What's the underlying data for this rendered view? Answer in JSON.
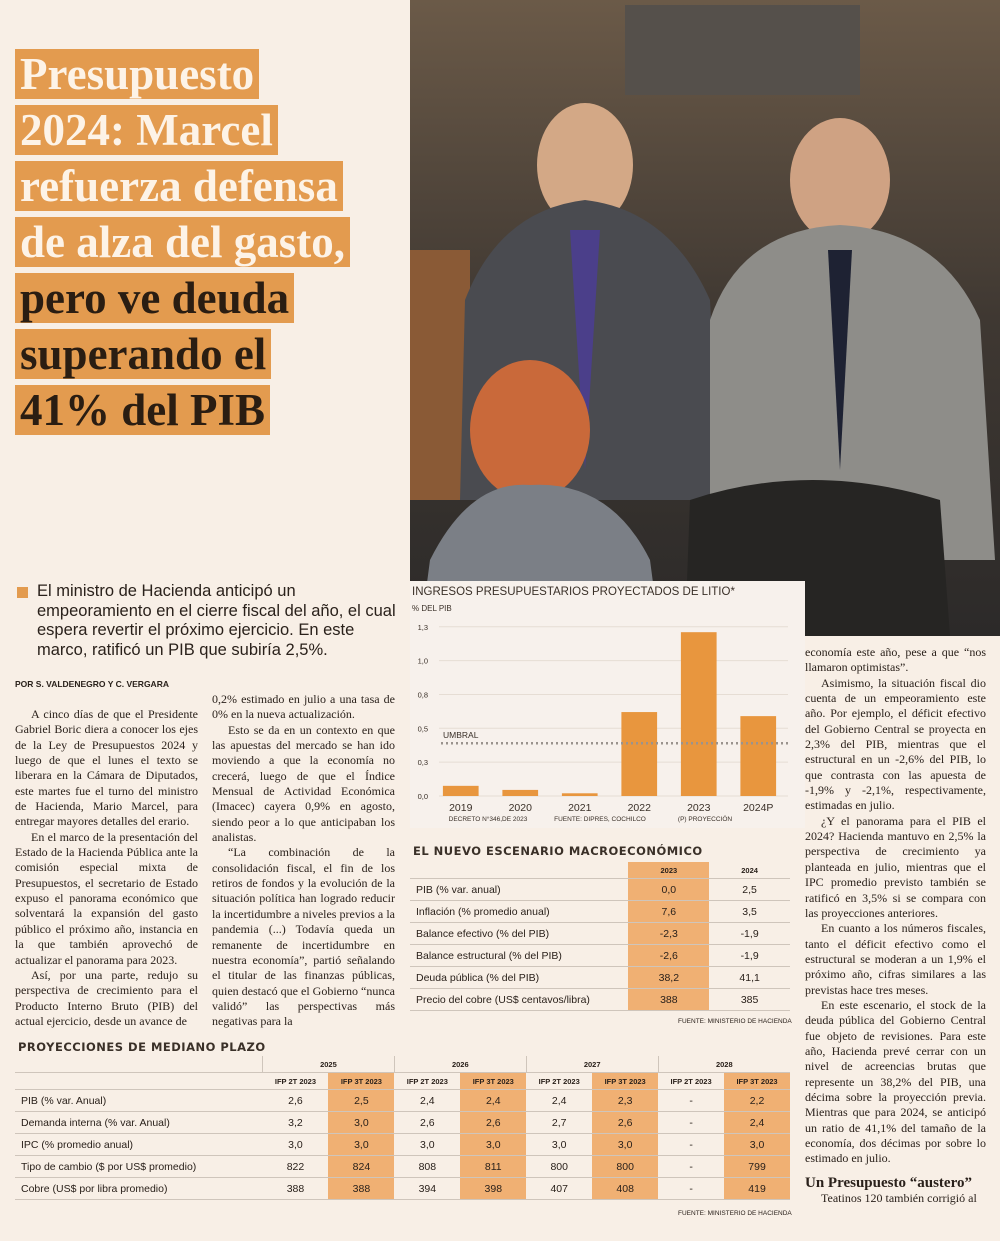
{
  "header": {
    "title_part1": "Presupuesto 2024: Marcel refuerza defensa de alza del gasto,",
    "title_part2": "pero ve deuda superando el 41% del PIB"
  },
  "lede": "El ministro de Hacienda anticipó un empeoramiento en el cierre fiscal del año, el cual espera revertir el próximo ejercicio. En este marco, ratificó un PIB que subiría 2,5%.",
  "byline": "POR S. VALDENEGRO Y C. VERGARA",
  "body": {
    "column_1": [
      "A cinco días de que el Presidente Gabriel Boric diera a conocer los ejes de la Ley de Presupuestos 2024 y luego de que el lunes el texto se liberara en la Cámara de Diputados, este martes fue el turno del ministro de Hacienda, Mario Marcel, para entregar mayores detalles del erario.",
      "En el marco de la presentación del Estado de la Hacienda Pública ante la comisión especial mixta de Presupuestos, el secretario de Estado expuso el panorama económico que solventará la expansión del gasto público el próximo año, instancia en la que también aprovechó de actualizar el panorama para 2023.",
      "Así, por una parte, redujo su perspectiva de crecimiento para el Producto Interno Bruto (PIB) del actual ejercicio, desde un avance de"
    ],
    "column_2": [
      "0,2% estimado en julio a una tasa de 0% en la nueva actualización.",
      "Esto se da en un contexto en que las apuestas del mercado se han ido moviendo a que la economía no crecerá, luego de que el Índice Mensual de Actividad Económica (Imacec) cayera 0,9% en agosto, siendo peor a lo que anticipaban los analistas.",
      "“La combinación de la consolidación fiscal, el fin de los retiros de fondos y la evolución de la situación política han logrado reducir la incertidumbre a niveles previos a la pandemia (...) Todavía queda un remanente de incertidumbre en nuestra economía”, partió señalando el titular de las finanzas públicas, quien destacó que el Gobierno “nunca validó” las perspectivas más negativas para la"
    ],
    "column_3": [
      "economía este año, pese a que “nos llamaron optimistas”.",
      "Asimismo, la situación fiscal dio cuenta de un empeoramiento este año. Por ejemplo, el déficit efectivo del Gobierno Central se proyecta en 2,3% del PIB, mientras que el estructural en un -2,6% del PIB, lo que contrasta con las apuesta de -1,9% y -2,1%, respectivamente, estimadas en julio.",
      "¿Y el panorama para el PIB el 2024? Hacienda mantuvo en 2,5% la perspectiva de crecimiento ya planteada en julio, mientras que el IPC promedio previsto también se ratificó en 3,5% si se compara con las proyecciones anteriores.",
      "En cuanto a los números fiscales, tanto el déficit efectivo como el estructural se moderan a un 1,9% el próximo año, cifras similares a las previstas hace tres meses.",
      "En este escenario, el stock de la deuda pública del Gobierno Central fue objeto de revisiones. Para este año, Hacienda prevé cerrar con un nivel de acreencias brutas que represente un 38,2% del PIB, una décima sobre la proyección previa. Mientras que para 2024, se anticipó un ratio de 41,1% del tamaño de la economía, dos décimas por sobre lo estimado en julio."
    ],
    "subhead": "Un Presupuesto “austero”",
    "column_3_end": "Teatinos 120 también corrigió al"
  },
  "chart_data": {
    "type": "bar",
    "title": "INGRESOS PRESUPUESTARIOS PROYECTADOS DE LITIO*",
    "y_label": "% DEL PIB",
    "categories": [
      "2019",
      "2020",
      "2021",
      "2022",
      "2023",
      "2024P"
    ],
    "values": [
      0.075,
      0.045,
      0.02,
      0.62,
      1.21,
      0.59
    ],
    "color": "#e8963e",
    "ylim": [
      0,
      1.3
    ],
    "yticks": [
      {
        "value": 0,
        "label": "0,0"
      },
      {
        "value": 0.25,
        "label": "0,3"
      },
      {
        "value": 0.5,
        "label": "0,5"
      },
      {
        "value": 0.75,
        "label": "0,8"
      },
      {
        "value": 1.0,
        "label": "1,0"
      },
      {
        "value": 1.25,
        "label": "1,3"
      }
    ],
    "grid": true,
    "threshold": {
      "label": "UMBRAL",
      "value": 0.39
    },
    "notes": [
      "DECRETO N°346,DE 2023",
      "FUENTE: DIPRES, COCHILCO",
      "(P) PROYECCIÓN"
    ]
  },
  "table_macro": {
    "title": "EL NUEVO ESCENARIO MACROECONÓMICO",
    "columns": [
      "2023",
      "2024"
    ],
    "rows": [
      [
        "PIB (% var. anual)",
        "0,0",
        "2,5"
      ],
      [
        "Inflación (% promedio anual)",
        "7,6",
        "3,5"
      ],
      [
        "Balance efectivo (% del PIB)",
        "-2,3",
        "-1,9"
      ],
      [
        "Balance estructural (% del PIB)",
        "-2,6",
        "-1,9"
      ],
      [
        "Deuda pública (% del PIB)",
        "38,2",
        "41,1"
      ],
      [
        "Precio del cobre (US$ centavos/libra)",
        "388",
        "385"
      ]
    ],
    "source": "FUENTE: MINISTERIO DE HACIENDA"
  },
  "table_medium_term": {
    "title": "PROYECCIONES DE MEDIANO PLAZO",
    "groups": [
      {
        "year": "2025",
        "columns": [
          "IFP 2T 2023",
          "IFP 3T 2023"
        ]
      },
      {
        "year": "2026",
        "columns": [
          "IFP 2T 2023",
          "IFP 3T 2023"
        ]
      },
      {
        "year": "2027",
        "columns": [
          "IFP 2T 2023",
          "IFP 3T 2023"
        ]
      },
      {
        "year": "2028",
        "columns": [
          "IFP 2T 2023",
          "IFP 3T 2023"
        ]
      }
    ],
    "rows": [
      [
        "PIB (% var. Anual)",
        "2,6",
        "2,5",
        "2,4",
        "2,4",
        "2,4",
        "2,3",
        "-",
        "2,2"
      ],
      [
        "Demanda interna (% var. Anual)",
        "3,2",
        "3,0",
        "2,6",
        "2,6",
        "2,7",
        "2,6",
        "-",
        "2,4"
      ],
      [
        "IPC (% promedio anual)",
        "3,0",
        "3,0",
        "3,0",
        "3,0",
        "3,0",
        "3,0",
        "-",
        "3,0"
      ],
      [
        "Tipo de cambio ($ por US$ promedio)",
        "822",
        "824",
        "808",
        "811",
        "800",
        "800",
        "-",
        "799"
      ],
      [
        "Cobre (US$ por libra promedio)",
        "388",
        "388",
        "394",
        "398",
        "407",
        "408",
        "-",
        "419"
      ]
    ],
    "source": "FUENTE: MINISTERIO DE HACIENDA"
  }
}
